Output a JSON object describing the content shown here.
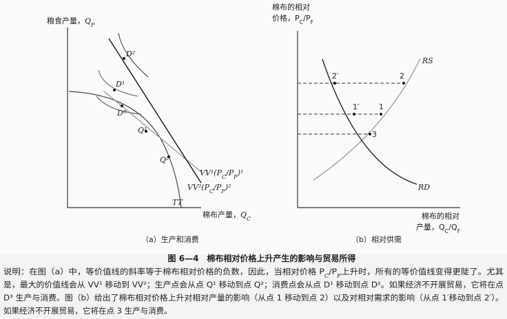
{
  "panel_a": {
    "y_axis": [
      "粮食产量，",
      "Q",
      "F"
    ],
    "x_axis": [
      "棉布产量，",
      "Q",
      "C"
    ],
    "points": [
      "D²",
      "D¹",
      "D³",
      "Q¹",
      "Q²"
    ],
    "vv1": [
      "VV¹(P",
      "C",
      "/P",
      "F",
      ")¹"
    ],
    "vv2": [
      "VV²(P",
      "C",
      "/P",
      "F",
      ")²"
    ],
    "tt": "TT",
    "caption": "（a）生产和消费"
  },
  "panel_b": {
    "y_axis": [
      "棉布的相对",
      "价格，P",
      "C",
      "/P",
      "F"
    ],
    "x_axis": [
      "棉布的相对",
      "产量，Q",
      "C",
      "/Q",
      "F"
    ],
    "curves": [
      "RS",
      "RD"
    ],
    "points": [
      "2′",
      "2",
      "1′",
      "1",
      "3"
    ],
    "caption": "（b）相对供需"
  },
  "figure_title": "图 6—4　棉布相对价格上升产生的影响与贸易所得",
  "description": [
    [
      "说明：在图（a）中，等价值线的斜率等于棉布相对价格的负数，因此，当相对价格 P",
      "C",
      "/P",
      "F",
      "上升时，所有的等价值线变得更陡了。尤其"
    ],
    [
      "是，最大的价值线会从 VV¹ 移动到 VV²；生产点会从点 Q¹ 移动到点 Q²；消费点会从点 D¹ 移动到点 D²。如果经济不开展贸易，它将在点"
    ],
    [
      "D³ 生产与消费。图（b）给出了棉布相对价格上升对相对产量的影响（从点 1 移动到点 2）以及对相对需求的影响（从点 1′移动到点 2′）。"
    ],
    [
      "如果经济不开展贸易，它将在点 3 生产与消费。"
    ]
  ]
}
